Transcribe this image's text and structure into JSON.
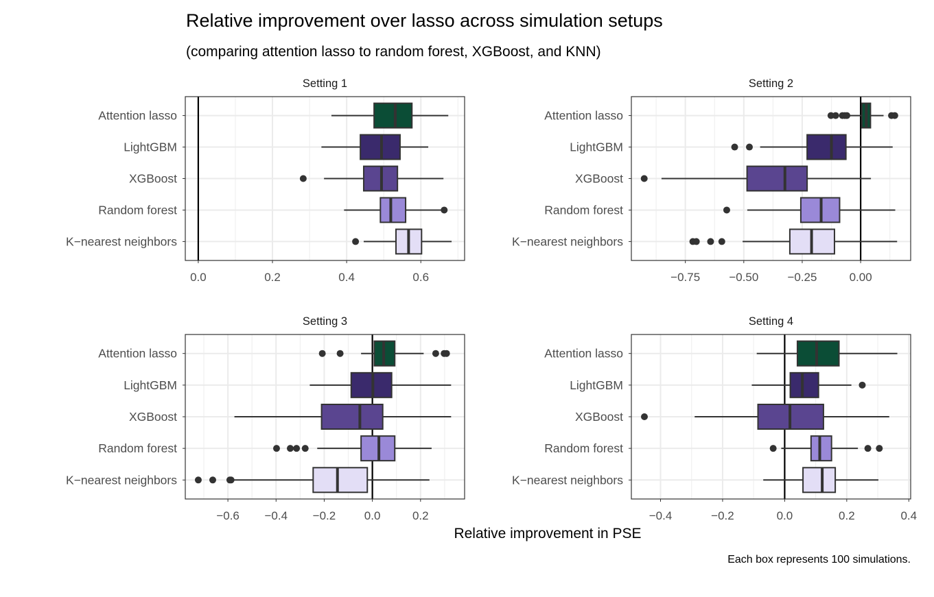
{
  "chart_data": {
    "type": "boxplot",
    "title": "Relative improvement over lasso across simulation setups",
    "subtitle": "(comparing attention lasso to random forest, XGBoost, and KNN)",
    "xlabel": "Relative improvement in PSE",
    "caption": "Each box represents 100 simulations.",
    "categories": [
      "Attention lasso",
      "LightGBM",
      "XGBoost",
      "Random forest",
      "K−nearest neighbors"
    ],
    "colors": {
      "Attention lasso": "#0b4d36",
      "LightGBM": "#3a2a6c",
      "XGBoost": "#5a4590",
      "Random forest": "#9a89d8",
      "K−nearest neighbors": "#e3def6"
    },
    "reference_line": 0,
    "grid": true,
    "panels": [
      {
        "title": "Setting 1",
        "xlim": [
          -0.035,
          0.718
        ],
        "ticks": [
          0.0,
          0.2,
          0.4,
          0.6
        ],
        "tick_labels": [
          "0.0",
          "0.2",
          "0.4",
          "0.6"
        ],
        "boxes": [
          {
            "category": "Attention lasso",
            "lo": 0.359,
            "q1": 0.474,
            "median": 0.531,
            "q3": 0.576,
            "hi": 0.674,
            "outliers": []
          },
          {
            "category": "LightGBM",
            "lo": 0.332,
            "q1": 0.437,
            "median": 0.494,
            "q3": 0.544,
            "hi": 0.62,
            "outliers": []
          },
          {
            "category": "XGBoost",
            "lo": 0.339,
            "q1": 0.446,
            "median": 0.494,
            "q3": 0.537,
            "hi": 0.661,
            "outliers": [
              0.283
            ]
          },
          {
            "category": "Random forest",
            "lo": 0.393,
            "q1": 0.491,
            "median": 0.519,
            "q3": 0.559,
            "hi": 0.655,
            "outliers": [
              0.663
            ]
          },
          {
            "category": "K−nearest neighbors",
            "lo": 0.446,
            "q1": 0.533,
            "median": 0.567,
            "q3": 0.602,
            "hi": 0.683,
            "outliers": [
              0.424
            ]
          }
        ]
      },
      {
        "title": "Setting 2",
        "xlim": [
          -0.981,
          0.214
        ],
        "ticks": [
          -0.75,
          -0.5,
          -0.25,
          0.0
        ],
        "tick_labels": [
          "−0.75",
          "−0.50",
          "−0.25",
          "0.00"
        ],
        "boxes": [
          {
            "category": "Attention lasso",
            "lo": -0.049,
            "q1": 0.005,
            "median": 0.024,
            "q3": 0.042,
            "hi": 0.098,
            "outliers": [
              -0.127,
              -0.107,
              -0.078,
              -0.068,
              -0.059,
              0.132,
              0.146
            ]
          },
          {
            "category": "LightGBM",
            "lo": -0.43,
            "q1": -0.229,
            "median": -0.125,
            "q3": -0.063,
            "hi": 0.137,
            "outliers": [
              -0.539,
              -0.476
            ]
          },
          {
            "category": "XGBoost",
            "lo": -0.852,
            "q1": -0.486,
            "median": -0.324,
            "q3": -0.229,
            "hi": 0.044,
            "outliers": [
              -0.926
            ]
          },
          {
            "category": "Random forest",
            "lo": -0.485,
            "q1": -0.256,
            "median": -0.169,
            "q3": -0.09,
            "hi": 0.148,
            "outliers": [
              -0.573
            ]
          },
          {
            "category": "K−nearest neighbors",
            "lo": -0.505,
            "q1": -0.303,
            "median": -0.21,
            "q3": -0.112,
            "hi": 0.156,
            "outliers": [
              -0.718,
              -0.703,
              -0.642,
              -0.594
            ]
          }
        ]
      },
      {
        "title": "Setting 3",
        "xlim": [
          -0.777,
          0.383
        ],
        "ticks": [
          -0.6,
          -0.4,
          -0.2,
          0.0,
          0.2
        ],
        "tick_labels": [
          "−0.6",
          "−0.4",
          "−0.2",
          "0.0",
          "0.2"
        ],
        "boxes": [
          {
            "category": "Attention lasso",
            "lo": -0.047,
            "q1": 0.008,
            "median": 0.047,
            "q3": 0.093,
            "hi": 0.213,
            "outliers": [
              -0.208,
              -0.134,
              0.263,
              0.298,
              0.308
            ]
          },
          {
            "category": "LightGBM",
            "lo": -0.26,
            "q1": -0.088,
            "median": 0.002,
            "q3": 0.08,
            "hi": 0.327,
            "outliers": []
          },
          {
            "category": "XGBoost",
            "lo": -0.573,
            "q1": -0.211,
            "median": -0.052,
            "q3": 0.043,
            "hi": 0.327,
            "outliers": []
          },
          {
            "category": "Random forest",
            "lo": -0.229,
            "q1": -0.047,
            "median": 0.027,
            "q3": 0.093,
            "hi": 0.246,
            "outliers": [
              -0.398,
              -0.341,
              -0.315,
              -0.279
            ]
          },
          {
            "category": "K−nearest neighbors",
            "lo": -0.582,
            "q1": -0.246,
            "median": -0.145,
            "q3": -0.021,
            "hi": 0.237,
            "outliers": [
              -0.723,
              -0.663,
              -0.592,
              -0.587
            ]
          }
        ]
      },
      {
        "title": "Setting 4",
        "xlim": [
          -0.494,
          0.406
        ],
        "ticks": [
          -0.4,
          -0.2,
          0.0,
          0.2,
          0.4
        ],
        "tick_labels": [
          "−0.4",
          "−0.2",
          "0.0",
          "0.2",
          "0.4"
        ],
        "boxes": [
          {
            "category": "Attention lasso",
            "lo": -0.09,
            "q1": 0.041,
            "median": 0.103,
            "q3": 0.175,
            "hi": 0.363,
            "outliers": []
          },
          {
            "category": "LightGBM",
            "lo": -0.106,
            "q1": 0.018,
            "median": 0.057,
            "q3": 0.109,
            "hi": 0.215,
            "outliers": [
              0.25
            ]
          },
          {
            "category": "XGBoost",
            "lo": -0.29,
            "q1": -0.086,
            "median": 0.017,
            "q3": 0.125,
            "hi": 0.337,
            "outliers": [
              -0.452
            ]
          },
          {
            "category": "Random forest",
            "lo": -0.011,
            "q1": 0.085,
            "median": 0.113,
            "q3": 0.151,
            "hi": 0.236,
            "outliers": [
              -0.037,
              0.268,
              0.305
            ]
          },
          {
            "category": "K−nearest neighbors",
            "lo": -0.069,
            "q1": 0.059,
            "median": 0.121,
            "q3": 0.163,
            "hi": 0.302,
            "outliers": []
          }
        ]
      }
    ]
  }
}
